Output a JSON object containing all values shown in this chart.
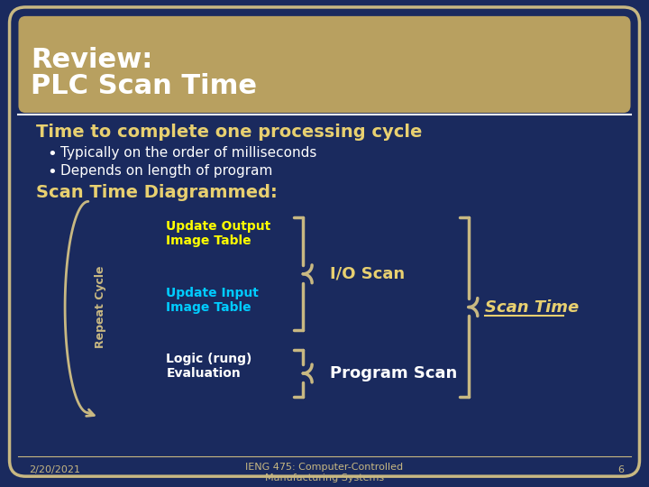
{
  "bg_color": "#1a2a5e",
  "border_color": "#c8b882",
  "title_bg_color": "#b8a060",
  "title_line1": "Review:",
  "title_line2": "PLC Scan Time",
  "title_color": "#ffffff",
  "subtitle_text": "Time to complete one processing cycle",
  "subtitle_color": "#e8d070",
  "bullet1": "Typically on the order of milliseconds",
  "bullet2": "Depends on length of program",
  "bullet_color": "#ffffff",
  "section_title": "Scan Time Diagrammed:",
  "section_color": "#e8d070",
  "update_output_text": "Update Output\nImage Table",
  "update_output_color": "#ffff00",
  "update_input_text": "Update Input\nImage Table",
  "update_input_color": "#00ccff",
  "logic_text": "Logic (rung)\nEvaluation",
  "logic_color": "#ffffff",
  "io_scan_text": "I/O Scan",
  "io_scan_color": "#e8d070",
  "program_scan_text": "Program Scan",
  "program_scan_color": "#ffffff",
  "scan_time_text": "Scan Time",
  "scan_time_color": "#e8d070",
  "repeat_cycle_text": "Repeat Cycle",
  "repeat_cycle_color": "#c8b882",
  "brace_color": "#c8b882",
  "footer_date": "2/20/2021",
  "footer_course": "IENG 475: Computer-Controlled\nManufacturing Systems",
  "footer_page": "6",
  "footer_color": "#c8b882"
}
